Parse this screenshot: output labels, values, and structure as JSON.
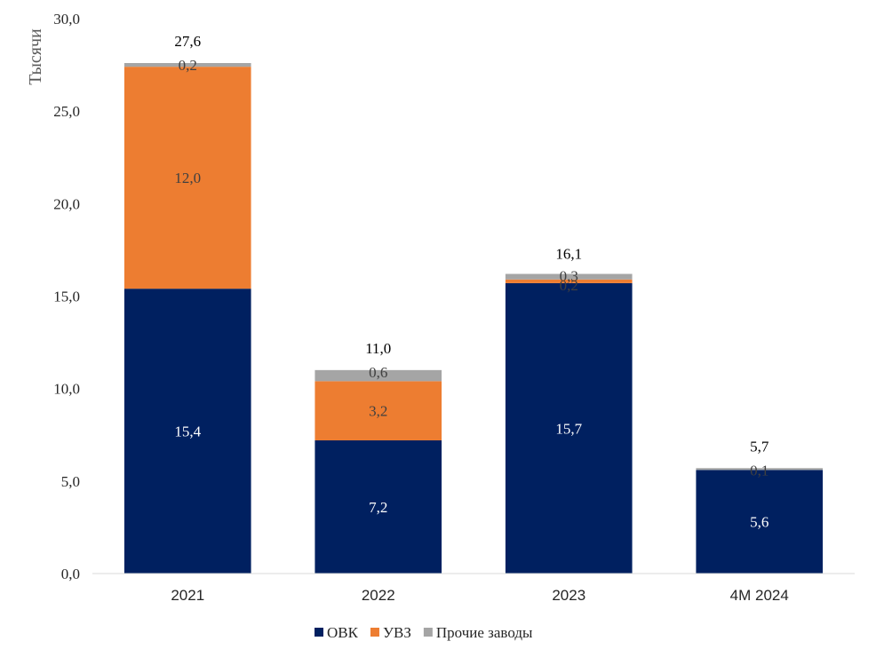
{
  "chart_data": {
    "type": "bar",
    "stacked": true,
    "title": "",
    "xlabel": "",
    "ylabel": "Тысячи",
    "ylim": [
      0,
      30
    ],
    "ytick_step": 5,
    "ytick_labels": [
      "0,0",
      "5,0",
      "10,0",
      "15,0",
      "20,0",
      "25,0",
      "30,0"
    ],
    "grid": false,
    "legend_position": "bottom",
    "categories": [
      "2021",
      "2022",
      "2023",
      "4M 2024"
    ],
    "series": [
      {
        "name": "ОВК",
        "color": "#002060",
        "label_color": "#ffffff",
        "values": [
          15.4,
          7.2,
          15.7,
          5.6
        ],
        "labels": [
          "15,4",
          "7,2",
          "15,7",
          "5,6"
        ]
      },
      {
        "name": "УВЗ",
        "color": "#ed7d31",
        "label_color": "#404040",
        "values": [
          12.0,
          3.2,
          0.2,
          0.0
        ],
        "labels": [
          "12,0",
          "3,2",
          "0,2",
          ""
        ]
      },
      {
        "name": "Прочие заводы",
        "color": "#a5a5a5",
        "label_color": "#404040",
        "values": [
          0.2,
          0.6,
          0.3,
          0.1
        ],
        "labels": [
          "0,2",
          "0,6",
          "0,3",
          "0,1"
        ]
      }
    ],
    "totals": [
      27.6,
      11.0,
      16.1,
      5.7
    ],
    "total_labels": [
      "27,6",
      "11,0",
      "16,1",
      "5,7"
    ]
  }
}
